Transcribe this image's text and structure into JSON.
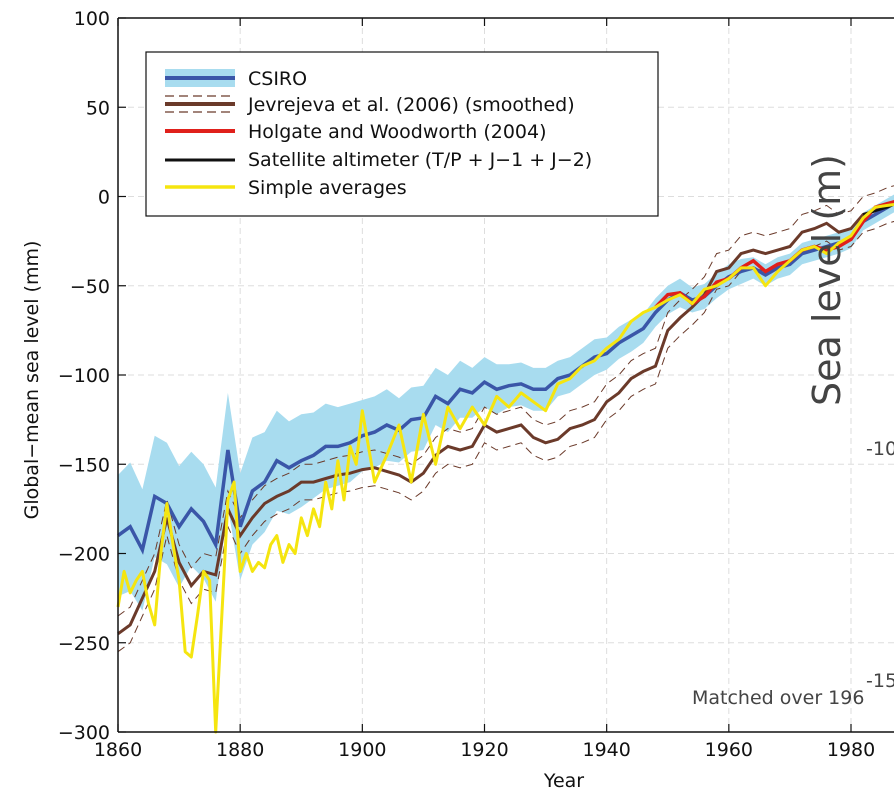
{
  "chart_data": {
    "type": "line",
    "title": "",
    "xlabel": "Year",
    "ylabel": "Global−mean sea level (mm)",
    "xlim": [
      1860,
      1990
    ],
    "ylim": [
      -300,
      100
    ],
    "x_ticks": [
      1860,
      1880,
      1900,
      1920,
      1940,
      1960,
      1980
    ],
    "y_ticks": [
      100,
      50,
      0,
      -50,
      -100,
      -150,
      -200,
      -250,
      -300
    ],
    "y_tick_labels": [
      "100",
      "50",
      "0",
      "−50",
      "−100",
      "−150",
      "−200",
      "−250",
      "−300"
    ],
    "grid": true,
    "legend": {
      "placement": "top-left",
      "entries": [
        "CSIRO",
        "Jevrejeva et al. (2006) (smoothed)",
        "Holgate and Woodworth (2004)",
        "Satellite altimeter (T/P + J−1 + J−2)",
        "Simple averages"
      ]
    },
    "colors": {
      "csiro": "#3a56a8",
      "csiro_band": "#a8dcef",
      "jevrejeva": "#6b3a2a",
      "holgate": "#e0201b",
      "satellite": "#111111",
      "simple": "#f5e50f"
    },
    "overlay_texts": {
      "sea_level_label": "Sea level (m)",
      "minus_10_label": "-10",
      "minus_15_label": "-15",
      "matched_label": "Matched over 196"
    },
    "series": [
      {
        "name": "CSIRO",
        "x": [
          1860,
          1862,
          1864,
          1866,
          1868,
          1870,
          1872,
          1874,
          1876,
          1878,
          1880,
          1882,
          1884,
          1886,
          1888,
          1890,
          1892,
          1894,
          1896,
          1898,
          1900,
          1902,
          1904,
          1906,
          1908,
          1910,
          1912,
          1914,
          1916,
          1918,
          1920,
          1922,
          1924,
          1926,
          1928,
          1930,
          1932,
          1934,
          1936,
          1938,
          1940,
          1942,
          1944,
          1946,
          1948,
          1950,
          1952,
          1954,
          1956,
          1958,
          1960,
          1962,
          1964,
          1966,
          1968,
          1970,
          1972,
          1974,
          1976,
          1978,
          1980,
          1982,
          1984,
          1986,
          1988,
          1990
        ],
        "y": [
          -190,
          -185,
          -198,
          -168,
          -172,
          -185,
          -175,
          -182,
          -195,
          -142,
          -185,
          -165,
          -160,
          -148,
          -152,
          -148,
          -145,
          -140,
          -140,
          -138,
          -134,
          -132,
          -128,
          -131,
          -125,
          -124,
          -112,
          -116,
          -108,
          -110,
          -104,
          -108,
          -106,
          -105,
          -108,
          -108,
          -102,
          -100,
          -95,
          -90,
          -88,
          -82,
          -78,
          -74,
          -65,
          -58,
          -54,
          -58,
          -56,
          -50,
          -45,
          -42,
          -40,
          -44,
          -40,
          -38,
          -32,
          -30,
          -28,
          -26,
          -24,
          -14,
          -10,
          -6,
          -2,
          2
        ],
        "band": [
          34,
          36,
          34,
          34,
          34,
          34,
          32,
          32,
          32,
          32,
          30,
          30,
          28,
          28,
          26,
          26,
          24,
          24,
          22,
          22,
          20,
          20,
          20,
          18,
          18,
          18,
          16,
          16,
          16,
          14,
          14,
          14,
          12,
          12,
          12,
          12,
          10,
          10,
          10,
          10,
          9,
          9,
          9,
          8,
          8,
          8,
          8,
          7,
          7,
          7,
          7,
          7,
          6,
          6,
          6,
          6,
          6,
          6,
          6,
          6,
          5,
          5,
          5,
          5,
          5,
          5
        ]
      },
      {
        "name": "Jevrejeva et al. (2006) (smoothed)",
        "x": [
          1860,
          1862,
          1864,
          1866,
          1868,
          1870,
          1872,
          1874,
          1876,
          1878,
          1880,
          1882,
          1884,
          1886,
          1888,
          1890,
          1892,
          1894,
          1896,
          1898,
          1900,
          1902,
          1904,
          1906,
          1908,
          1910,
          1912,
          1914,
          1916,
          1918,
          1920,
          1922,
          1924,
          1926,
          1928,
          1930,
          1932,
          1934,
          1936,
          1938,
          1940,
          1942,
          1944,
          1946,
          1948,
          1950,
          1952,
          1954,
          1956,
          1958,
          1960,
          1962,
          1964,
          1966,
          1968,
          1970,
          1972,
          1974,
          1976,
          1978,
          1980,
          1982,
          1984,
          1986,
          1988,
          1990
        ],
        "y": [
          -245,
          -240,
          -225,
          -210,
          -180,
          -205,
          -218,
          -210,
          -212,
          -175,
          -190,
          -180,
          -172,
          -168,
          -165,
          -160,
          -160,
          -158,
          -156,
          -155,
          -153,
          -152,
          -154,
          -156,
          -160,
          -155,
          -145,
          -140,
          -142,
          -140,
          -128,
          -132,
          -130,
          -128,
          -135,
          -138,
          -136,
          -130,
          -128,
          -125,
          -115,
          -110,
          -102,
          -98,
          -95,
          -75,
          -68,
          -62,
          -55,
          -42,
          -40,
          -32,
          -30,
          -32,
          -30,
          -28,
          -20,
          -18,
          -15,
          -20,
          -18,
          -10,
          -8,
          -5,
          -3,
          0
        ]
      },
      {
        "name": "Holgate and Woodworth (2004)",
        "x": [
          1948,
          1950,
          1952,
          1954,
          1956,
          1958,
          1960,
          1962,
          1964,
          1966,
          1968,
          1970,
          1972,
          1974,
          1976,
          1978,
          1980,
          1982,
          1984,
          1986,
          1988,
          1990
        ],
        "y": [
          -62,
          -55,
          -54,
          -60,
          -56,
          -48,
          -46,
          -40,
          -36,
          -42,
          -38,
          -36,
          -30,
          -28,
          -30,
          -28,
          -24,
          -14,
          -6,
          -4,
          -2,
          4
        ]
      },
      {
        "name": "Satellite altimeter (T/P + J−1 + J−2)",
        "x": [
          1982,
          1984,
          1986,
          1988,
          1990
        ],
        "y": [
          -10,
          -8,
          -6,
          -3,
          0
        ]
      },
      {
        "name": "Simple averages",
        "x": [
          1860,
          1861,
          1862,
          1863,
          1864,
          1865,
          1866,
          1867,
          1868,
          1869,
          1870,
          1871,
          1872,
          1873,
          1874,
          1875,
          1876,
          1877,
          1878,
          1879,
          1880,
          1881,
          1882,
          1883,
          1884,
          1885,
          1886,
          1887,
          1888,
          1889,
          1890,
          1891,
          1892,
          1893,
          1894,
          1895,
          1896,
          1897,
          1898,
          1899,
          1900,
          1902,
          1904,
          1906,
          1908,
          1910,
          1912,
          1914,
          1916,
          1918,
          1920,
          1922,
          1924,
          1926,
          1928,
          1930,
          1932,
          1934,
          1936,
          1938,
          1940,
          1942,
          1944,
          1946,
          1948,
          1950,
          1952,
          1954,
          1956,
          1958,
          1960,
          1962,
          1964,
          1966,
          1968,
          1970,
          1972,
          1974,
          1976,
          1978,
          1980,
          1982,
          1984,
          1986,
          1988,
          1990
        ],
        "y": [
          -230,
          -210,
          -222,
          -215,
          -210,
          -228,
          -240,
          -200,
          -172,
          -195,
          -215,
          -255,
          -258,
          -235,
          -210,
          -215,
          -300,
          -235,
          -170,
          -160,
          -210,
          -200,
          -210,
          -205,
          -208,
          -195,
          -190,
          -205,
          -195,
          -200,
          -180,
          -190,
          -175,
          -185,
          -160,
          -175,
          -148,
          -170,
          -140,
          -150,
          -120,
          -160,
          -145,
          -128,
          -160,
          -122,
          -150,
          -118,
          -130,
          -118,
          -128,
          -112,
          -118,
          -110,
          -115,
          -120,
          -105,
          -102,
          -95,
          -92,
          -85,
          -80,
          -70,
          -65,
          -62,
          -58,
          -55,
          -60,
          -52,
          -50,
          -46,
          -40,
          -40,
          -50,
          -42,
          -36,
          -30,
          -28,
          -32,
          -26,
          -22,
          -12,
          -6,
          -5,
          -4,
          10
        ]
      }
    ]
  }
}
